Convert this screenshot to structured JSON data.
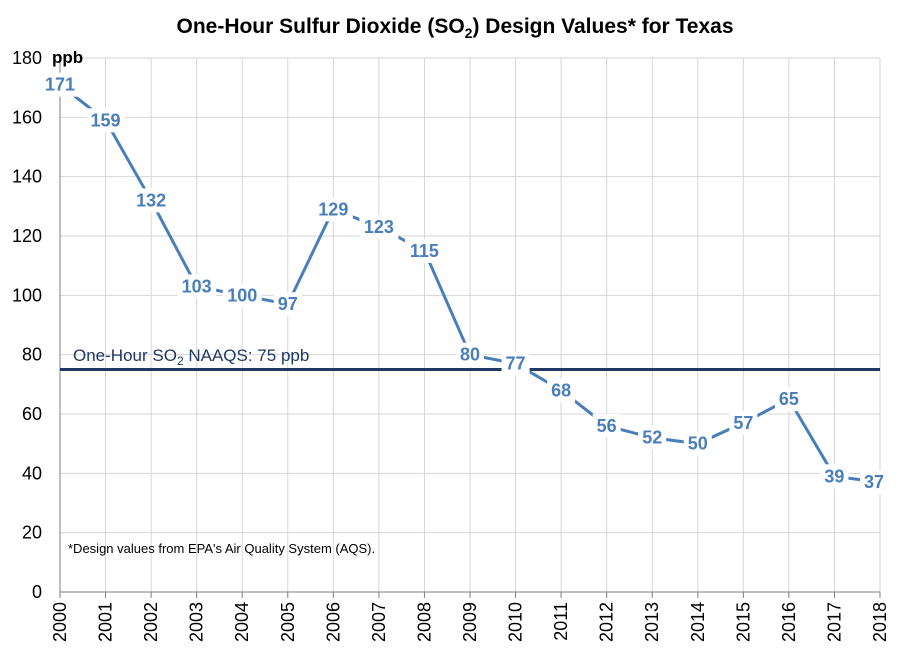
{
  "chart_data": {
    "type": "line",
    "title_prefix": "One-Hour Sulfur Dioxide (SO",
    "title_sub": "2",
    "title_suffix": ") Design Values* for Texas",
    "y_unit": "ppb",
    "ylim": [
      0,
      180
    ],
    "y_ticks": [
      0,
      20,
      40,
      60,
      80,
      100,
      120,
      140,
      160,
      180
    ],
    "categories": [
      "2000",
      "2001",
      "2002",
      "2003",
      "2004",
      "2005",
      "2006",
      "2007",
      "2008",
      "2009",
      "2010",
      "2011",
      "2012",
      "2013",
      "2014",
      "2015",
      "2016",
      "2017",
      "2018"
    ],
    "series": [
      {
        "name": "Design Value",
        "color": "#4a7ebb",
        "values": [
          171,
          159,
          132,
          103,
          100,
          97,
          129,
          123,
          115,
          80,
          77,
          68,
          56,
          52,
          50,
          57,
          65,
          39,
          37
        ]
      }
    ],
    "reference_line": {
      "value": 75,
      "color": "#1f3864",
      "label_prefix": "One-Hour SO",
      "label_sub": "2",
      "label_suffix": " NAAQS: 75 ppb"
    },
    "footnote": "*Design values from EPA's Air Quality System (AQS)."
  }
}
